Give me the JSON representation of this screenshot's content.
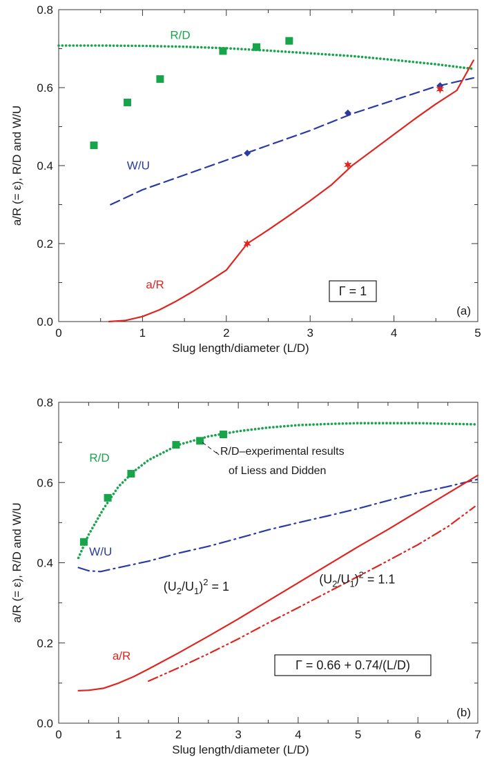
{
  "colors": {
    "rd": "#17a44a",
    "wu": "#2a3aa3",
    "ar": "#e0251f",
    "axis": "#333333"
  },
  "chart_data": [
    {
      "panel_tag": "(a)",
      "type": "line",
      "xlabel": "Slug length/diameter (L/D)",
      "ylabel": "a/R (= ε), R/D and W/U",
      "xlim": [
        0,
        5
      ],
      "ylim": [
        0,
        0.8
      ],
      "xticks": [
        "0",
        "1",
        "2",
        "3",
        "4",
        "5"
      ],
      "yticks": [
        "0.0",
        "0.2",
        "0.4",
        "0.6",
        "0.8"
      ],
      "grid": false,
      "box_label": "Γ = 1",
      "series": [
        {
          "name": "R/D",
          "style": "dotted",
          "color_key": "rd",
          "x": [
            0,
            0.5,
            1,
            1.5,
            2,
            2.5,
            3,
            3.5,
            4,
            4.5,
            4.95
          ],
          "y": [
            0.708,
            0.708,
            0.707,
            0.705,
            0.701,
            0.695,
            0.688,
            0.681,
            0.671,
            0.66,
            0.648
          ]
        },
        {
          "name": "W/U",
          "style": "dashed",
          "color_key": "wu",
          "x": [
            0.62,
            1,
            1.5,
            2,
            2.5,
            3,
            3.5,
            4,
            4.5,
            4.95
          ],
          "y": [
            0.3,
            0.338,
            0.376,
            0.414,
            0.452,
            0.49,
            0.533,
            0.568,
            0.603,
            0.625
          ]
        },
        {
          "name": "a/R",
          "style": "solid",
          "color_key": "ar",
          "x": [
            0.6,
            0.8,
            1,
            1.2,
            1.4,
            1.6,
            1.8,
            2,
            2.25,
            2.5,
            2.75,
            3,
            3.25,
            3.5,
            3.75,
            4,
            4.25,
            4.5,
            4.75,
            4.95
          ],
          "y": [
            0,
            0.003,
            0.013,
            0.03,
            0.052,
            0.077,
            0.104,
            0.132,
            0.2,
            0.235,
            0.272,
            0.31,
            0.35,
            0.4,
            0.44,
            0.48,
            0.52,
            0.558,
            0.593,
            0.67
          ]
        }
      ],
      "markers": [
        {
          "series": "R/D",
          "shape": "square",
          "color_key": "rd",
          "x": [
            0.42,
            0.82,
            1.21,
            1.96,
            2.36,
            2.75
          ],
          "y": [
            0.452,
            0.562,
            0.622,
            0.694,
            0.704,
            0.72
          ]
        },
        {
          "series": "W/U",
          "shape": "diamond",
          "color_key": "wu",
          "x": [
            2.25,
            3.45,
            4.55
          ],
          "y": [
            0.432,
            0.535,
            0.605
          ]
        },
        {
          "series": "a/R",
          "shape": "star",
          "color_key": "ar",
          "x": [
            2.25,
            3.45,
            4.55
          ],
          "y": [
            0.2,
            0.402,
            0.596
          ]
        }
      ],
      "series_labels": [
        {
          "text": "R/D",
          "color_key": "rd",
          "x": 1.45,
          "y": 0.725
        },
        {
          "text": "W/U",
          "color_key": "wu",
          "x": 0.95,
          "y": 0.39
        },
        {
          "text": "a/R",
          "color_key": "ar",
          "x": 1.15,
          "y": 0.085
        }
      ]
    },
    {
      "panel_tag": "(b)",
      "type": "line",
      "xlabel": "Slug length/diameter (L/D)",
      "ylabel": "a/R (= ε), R/D and W/U",
      "xlim": [
        0,
        7
      ],
      "ylim": [
        0,
        0.8
      ],
      "xticks": [
        "0",
        "1",
        "2",
        "3",
        "4",
        "5",
        "6",
        "7"
      ],
      "yticks": [
        "0.0",
        "0.2",
        "0.4",
        "0.6",
        "0.8"
      ],
      "grid": false,
      "box_label": "Γ = 0.66 + 0.74/(L/D)",
      "annotation": [
        "R/D–experimental results",
        "of Liess and Didden"
      ],
      "series": [
        {
          "name": "R/D",
          "style": "dotted",
          "color_key": "rd",
          "x": [
            0.33,
            0.5,
            0.75,
            1,
            1.25,
            1.5,
            2,
            2.5,
            3,
            3.5,
            4,
            4.5,
            5,
            6,
            7
          ],
          "y": [
            0.412,
            0.47,
            0.535,
            0.59,
            0.627,
            0.656,
            0.694,
            0.715,
            0.728,
            0.737,
            0.743,
            0.746,
            0.748,
            0.748,
            0.745
          ]
        },
        {
          "name": "W/U",
          "style": "dash-dot",
          "color_key": "wu",
          "x": [
            0.33,
            0.5,
            0.7,
            1,
            1.5,
            2,
            2.5,
            3,
            3.5,
            4,
            4.5,
            5,
            5.5,
            6,
            6.5,
            7
          ],
          "y": [
            0.388,
            0.38,
            0.378,
            0.388,
            0.404,
            0.424,
            0.441,
            0.461,
            0.482,
            0.5,
            0.517,
            0.535,
            0.555,
            0.574,
            0.59,
            0.608
          ]
        },
        {
          "name": "(U2/U1)2 = 1",
          "style": "solid",
          "color_key": "ar",
          "x": [
            0.33,
            0.5,
            0.75,
            1,
            1.25,
            1.5,
            2,
            2.5,
            3,
            3.5,
            4,
            4.5,
            5,
            5.5,
            6,
            6.5,
            7
          ],
          "y": [
            0.081,
            0.082,
            0.087,
            0.1,
            0.116,
            0.135,
            0.175,
            0.217,
            0.26,
            0.305,
            0.35,
            0.395,
            0.44,
            0.483,
            0.528,
            0.573,
            0.618
          ]
        },
        {
          "name": "(U2/U1)2 = 1.1",
          "style": "dash-dot-dot",
          "color_key": "ar",
          "x": [
            1.5,
            2,
            2.5,
            3,
            3.5,
            4,
            4.5,
            5,
            5.5,
            6,
            6.5,
            6.95
          ],
          "y": [
            0.105,
            0.138,
            0.173,
            0.21,
            0.25,
            0.288,
            0.327,
            0.366,
            0.405,
            0.445,
            0.49,
            0.54
          ]
        }
      ],
      "markers": [
        {
          "series": "R/D",
          "shape": "square",
          "color_key": "rd",
          "x": [
            0.42,
            0.82,
            1.21,
            1.96,
            2.36,
            2.75
          ],
          "y": [
            0.452,
            0.562,
            0.622,
            0.694,
            0.704,
            0.72
          ]
        }
      ],
      "series_labels": [
        {
          "text": "R/D",
          "color_key": "rd",
          "x": 0.68,
          "y": 0.652
        },
        {
          "text": "W/U",
          "color_key": "wu",
          "x": 0.7,
          "y": 0.418
        },
        {
          "text": "a/R",
          "color_key": "ar",
          "x": 1.05,
          "y": 0.158
        }
      ],
      "equation_labels": [
        {
          "base": "(U",
          "sub1": "2",
          "mid": "/U",
          "sub2": "1",
          "close": ")",
          "sup": "2",
          "tail": " = 1",
          "x": 1.75,
          "y": 0.33
        },
        {
          "base": "(U",
          "sub1": "2",
          "mid": "/U",
          "sub2": "1",
          "close": ")",
          "sup": "2",
          "tail": " = 1.1",
          "x": 4.35,
          "y": 0.348
        }
      ]
    }
  ]
}
